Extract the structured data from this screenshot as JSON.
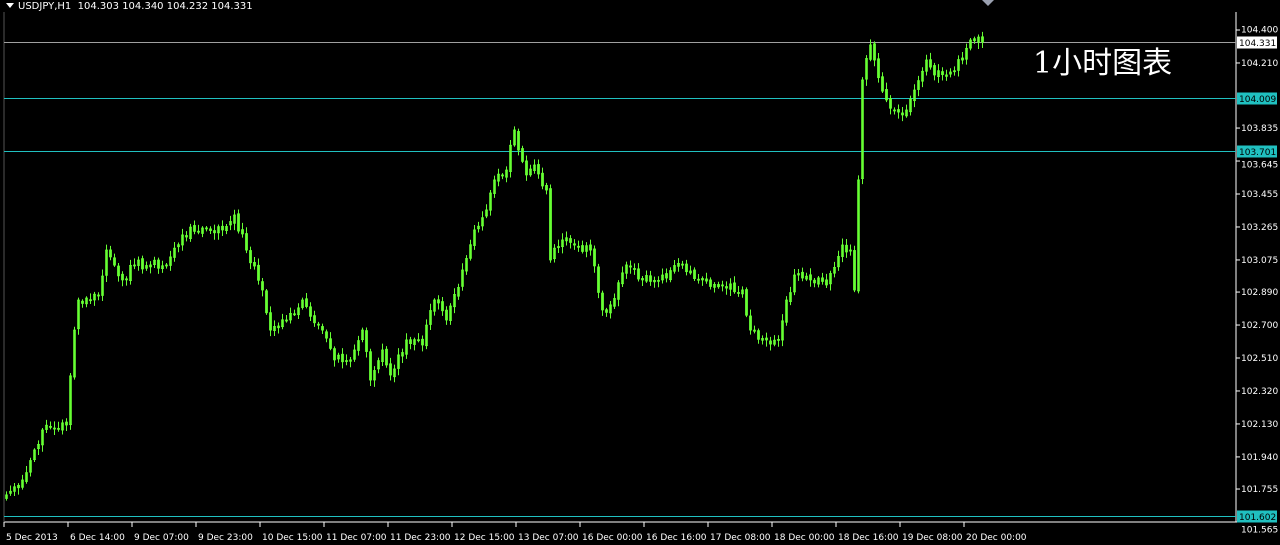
{
  "header": {
    "symbol": "USDJPY,H1",
    "ohlc": "104.303 104.340 104.232 104.331"
  },
  "overlay_text": "1小时图表",
  "chart_data": {
    "type": "candlestick",
    "colors": {
      "candle": "#66ff33",
      "hline": "#20c0c0",
      "bid_line": "#a0a0a0",
      "background": "#000000",
      "axis": "#ffffff"
    },
    "ylim": [
      101.565,
      104.4
    ],
    "y_ticks": [
      "104.400",
      "104.210",
      "103.835",
      "103.645",
      "103.455",
      "103.265",
      "103.075",
      "102.890",
      "102.700",
      "102.510",
      "102.320",
      "102.130",
      "101.940",
      "101.755",
      "101.565"
    ],
    "x_ticks": [
      "5 Dec 2013",
      "6 Dec 14:00",
      "9 Dec 07:00",
      "9 Dec 23:00",
      "10 Dec 15:00",
      "11 Dec 07:00",
      "11 Dec 23:00",
      "12 Dec 15:00",
      "13 Dec 07:00",
      "16 Dec 00:00",
      "16 Dec 16:00",
      "17 Dec 08:00",
      "18 Dec 00:00",
      "18 Dec 16:00",
      "19 Dec 08:00",
      "20 Dec 00:00"
    ],
    "bars_per_x_tick": 16,
    "close_keypoints": [
      [
        0,
        101.721
      ],
      [
        4,
        101.807
      ],
      [
        9,
        102.095
      ],
      [
        15,
        102.124
      ],
      [
        17,
        102.671
      ],
      [
        18,
        102.844
      ],
      [
        23,
        102.873
      ],
      [
        25,
        103.132
      ],
      [
        29,
        102.96
      ],
      [
        32,
        103.046
      ],
      [
        36,
        103.046
      ],
      [
        40,
        103.046
      ],
      [
        44,
        103.219
      ],
      [
        49,
        103.259
      ],
      [
        54,
        103.248
      ],
      [
        57,
        103.334
      ],
      [
        60,
        103.132
      ],
      [
        64,
        102.902
      ],
      [
        66,
        102.671
      ],
      [
        70,
        102.729
      ],
      [
        74,
        102.844
      ],
      [
        79,
        102.671
      ],
      [
        82,
        102.499
      ],
      [
        86,
        102.499
      ],
      [
        89,
        102.671
      ],
      [
        91,
        102.383
      ],
      [
        94,
        102.556
      ],
      [
        96,
        102.412
      ],
      [
        100,
        102.614
      ],
      [
        104,
        102.585
      ],
      [
        107,
        102.844
      ],
      [
        110,
        102.729
      ],
      [
        114,
        103.017
      ],
      [
        117,
        103.248
      ],
      [
        120,
        103.363
      ],
      [
        122,
        103.536
      ],
      [
        125,
        103.593
      ],
      [
        127,
        103.824
      ],
      [
        130,
        103.565
      ],
      [
        132,
        103.622
      ],
      [
        135,
        103.478
      ],
      [
        136,
        103.075
      ],
      [
        139,
        103.19
      ],
      [
        142,
        103.161
      ],
      [
        146,
        103.132
      ],
      [
        149,
        102.787
      ],
      [
        151,
        102.816
      ],
      [
        155,
        103.046
      ],
      [
        159,
        102.96
      ],
      [
        164,
        102.988
      ],
      [
        169,
        103.046
      ],
      [
        174,
        102.96
      ],
      [
        179,
        102.931
      ],
      [
        184,
        102.902
      ],
      [
        186,
        102.671
      ],
      [
        190,
        102.614
      ],
      [
        193,
        102.614
      ],
      [
        195,
        102.844
      ],
      [
        197,
        102.988
      ],
      [
        201,
        102.96
      ],
      [
        205,
        102.931
      ],
      [
        209,
        103.161
      ],
      [
        211,
        103.132
      ],
      [
        212,
        102.902
      ],
      [
        213,
        103.536
      ],
      [
        214,
        104.112
      ],
      [
        216,
        104.314
      ],
      [
        217,
        104.227
      ],
      [
        220,
        103.997
      ],
      [
        222,
        103.939
      ],
      [
        225,
        103.939
      ],
      [
        227,
        104.054
      ],
      [
        230,
        104.227
      ],
      [
        232,
        104.141
      ],
      [
        235,
        104.141
      ],
      [
        239,
        104.227
      ],
      [
        241,
        104.342
      ],
      [
        244,
        104.331
      ]
    ],
    "horizontal_lines": [
      {
        "price": "104.331",
        "kind": "bid"
      },
      {
        "price": "104.009",
        "kind": "level"
      },
      {
        "price": "103.701",
        "kind": "level"
      },
      {
        "price": "101.602",
        "kind": "level"
      }
    ]
  }
}
